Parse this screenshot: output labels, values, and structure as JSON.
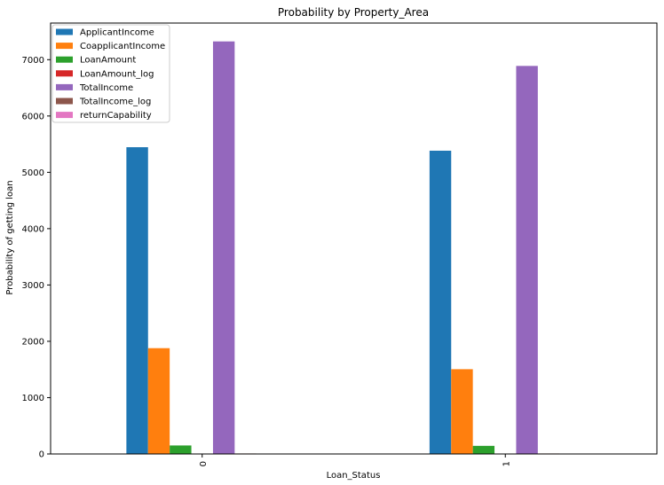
{
  "chart_data": {
    "type": "bar",
    "title": "Probability by Property_Area",
    "xlabel": "Loan_Status",
    "ylabel": "Probability of getting loan",
    "categories": [
      "0",
      "1"
    ],
    "ylim": [
      0,
      7650
    ],
    "yticks": [
      0,
      1000,
      2000,
      3000,
      4000,
      5000,
      6000,
      7000
    ],
    "grid": false,
    "legend_position": "top-left",
    "series": [
      {
        "name": "ApplicantIncome",
        "color": "#1f77b4",
        "values": [
          5446,
          5384
        ]
      },
      {
        "name": "CoapplicantIncome",
        "color": "#ff7f0e",
        "values": [
          1878,
          1505
        ]
      },
      {
        "name": "LoanAmount",
        "color": "#2ca02c",
        "values": [
          151,
          144
        ]
      },
      {
        "name": "LoanAmount_log",
        "color": "#d62728",
        "values": [
          4.9,
          4.86
        ]
      },
      {
        "name": "TotalIncome",
        "color": "#9467bd",
        "values": [
          7324,
          6889
        ]
      },
      {
        "name": "TotalIncome_log",
        "color": "#8c564b",
        "values": [
          8.7,
          8.66
        ]
      },
      {
        "name": "returnCapability",
        "color": "#e377c2",
        "values": [
          0.02,
          0.02
        ]
      }
    ]
  }
}
